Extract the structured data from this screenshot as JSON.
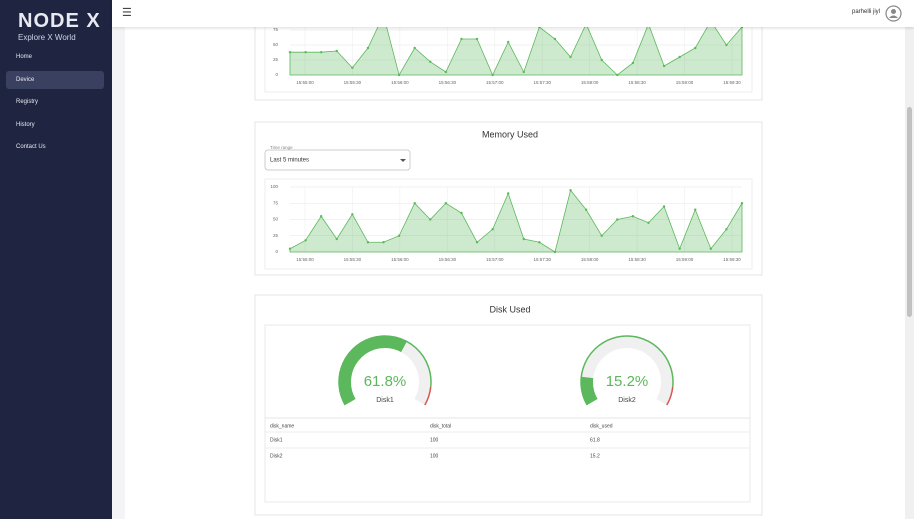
{
  "sidebar": {
    "logo": "NODE X",
    "tagline": "Explore X World",
    "nav": [
      "Home",
      "Device",
      "Registry",
      "History",
      "Contact Us"
    ]
  },
  "topbar": {
    "user": "parhelli jiyl"
  },
  "chart_data": [
    {
      "type": "area",
      "color": "#5cb85c",
      "values": [
        38,
        38,
        38,
        40,
        12,
        45,
        100,
        0,
        45,
        22,
        5,
        60,
        60,
        0,
        55,
        5,
        80,
        60,
        30,
        85,
        25,
        0,
        20,
        85,
        15,
        30,
        45,
        90,
        50,
        80
      ],
      "xticks": [
        "15:55:00",
        "15:55:30",
        "15:56:00",
        "15:56:30",
        "15:57:00",
        "15:57:30",
        "15:58:00",
        "15:58:30",
        "15:59:00",
        "15:59:30"
      ],
      "ylim": [
        0,
        100
      ],
      "yticks": [
        0,
        25,
        50,
        75,
        100
      ],
      "grid": true
    },
    {
      "type": "area",
      "title": "Memory Used",
      "color": "#5cb85c",
      "values": [
        5,
        18,
        55,
        20,
        58,
        15,
        15,
        25,
        75,
        50,
        75,
        60,
        15,
        35,
        90,
        20,
        15,
        0,
        95,
        65,
        25,
        50,
        55,
        45,
        70,
        5,
        65,
        5,
        35,
        75
      ],
      "xticks": [
        "15:55:00",
        "15:55:30",
        "15:56:00",
        "15:56:30",
        "15:57:00",
        "15:57:30",
        "15:58:00",
        "15:58:30",
        "15:59:00",
        "15:59:30"
      ],
      "ylim": [
        0,
        100
      ],
      "yticks": [
        0,
        25,
        50,
        75,
        100
      ],
      "grid": true
    }
  ],
  "time_range": {
    "label": "Time range",
    "value": "Last 5 minutes"
  },
  "disk": {
    "title": "Disk Used",
    "gauges": [
      {
        "name": "Disk1",
        "value": 61.8,
        "value_label": "61.8%"
      },
      {
        "name": "Disk2",
        "value": 15.2,
        "value_label": "15.2%"
      }
    ],
    "table": {
      "header": [
        "disk_name",
        "disk_total",
        "disk_used"
      ],
      "rows": [
        [
          "Disk1",
          "100",
          "61.8"
        ],
        [
          "Disk2",
          "100",
          "15.2"
        ]
      ]
    }
  }
}
